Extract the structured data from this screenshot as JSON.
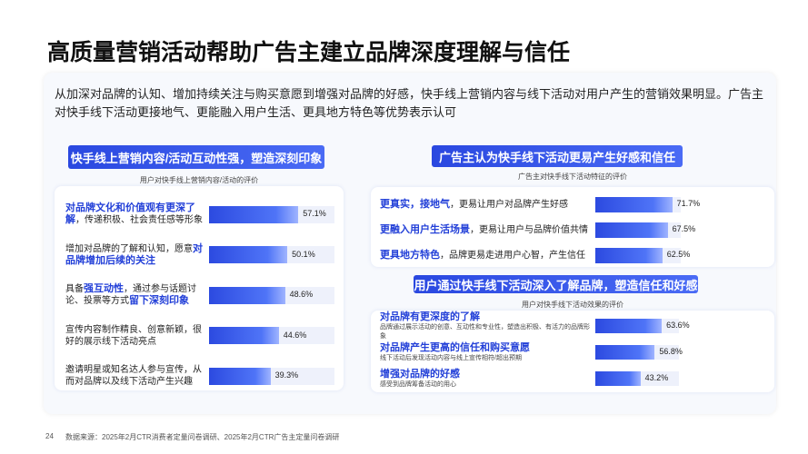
{
  "page": {
    "title": "高质量营销活动帮助广告主建立品牌深度理解与信任",
    "subtitle": "从加深对品牌的认知、增加持续关注与购买意愿到增强对品牌的好感，快手线上营销内容与线下活动对用户产生的营销效果明显。广告主对快手线下活动更接地气、更能融入用户生活、更具地方特色等优势表示认可",
    "page_number": "24",
    "source": "数据来源：2025年2月CTR消费者定量问卷调研、2025年2月CTR广告主定量问卷调研"
  },
  "chart_data": [
    {
      "type": "bar",
      "orientation": "horizontal",
      "title": "快手线上营销内容/活动互动性强，塑造深刻印象",
      "subtitle": "用户对快手线上营销内容/活动的评价",
      "color": "#3d5be8",
      "categories": [
        [
          {
            "text": "对品牌文化和价值观有更深了解",
            "style": "strong"
          },
          {
            "text": "，传递积极、社会责任感等形象",
            "style": "plain"
          }
        ],
        [
          {
            "text": "增加对品牌的了解和认知，愿意",
            "style": "plain"
          },
          {
            "text": "对品牌增加后续的关注",
            "style": "strong"
          }
        ],
        [
          {
            "text": "具备",
            "style": "plain"
          },
          {
            "text": "强互动性",
            "style": "strong"
          },
          {
            "text": "，通过参与话题讨论、投票等方式",
            "style": "plain"
          },
          {
            "text": "留下深刻印象",
            "style": "strong"
          }
        ],
        [
          {
            "text": "宣传内容制作精良、创意新颖，很好的展示线下活动亮点",
            "style": "plain"
          }
        ],
        [
          {
            "text": "邀请明星或知名达人参与宣传，从而对品牌以及线下活动产生兴趣",
            "style": "plain"
          }
        ]
      ],
      "values": [
        57.1,
        50.1,
        48.6,
        44.6,
        39.3
      ],
      "value_labels": [
        "57.1%",
        "50.1%",
        "48.6%",
        "44.6%",
        "39.3%"
      ]
    },
    {
      "type": "bar",
      "orientation": "horizontal",
      "title": "广告主认为快手线下活动更易产生好感和信任",
      "subtitle": "广告主对快手线下活动特征的评价",
      "color": "#3d5be8",
      "categories": [
        [
          {
            "text": "更真实，接地气",
            "style": "strong"
          },
          {
            "text": "，更易让用户对品牌产生好感",
            "style": "plain"
          }
        ],
        [
          {
            "text": "更融入用户生活场景",
            "style": "strong"
          },
          {
            "text": "，更易让用户与品牌价值共情",
            "style": "plain"
          }
        ],
        [
          {
            "text": "更具地方特色",
            "style": "strong"
          },
          {
            "text": "，品牌更易走进用户心智，产生信任",
            "style": "plain"
          }
        ]
      ],
      "values": [
        71.7,
        67.5,
        62.5
      ],
      "value_labels": [
        "71.7%",
        "67.5%",
        "62.5%"
      ]
    },
    {
      "type": "bar",
      "orientation": "horizontal",
      "title": "用户通过快手线下活动深入了解品牌，塑造信任和好感",
      "subtitle": "用户对快手线下活动效果的评价",
      "color": "#3d5be8",
      "categories": [
        [
          {
            "text": "对品牌有更深度的了解",
            "style": "strong"
          },
          {
            "text": "品牌通过展示活动的创意、互动性和专业性，塑造出积极、有活力的品牌形象",
            "style": "note"
          }
        ],
        [
          {
            "text": "对品牌产生更高的信任和购买意愿",
            "style": "strong"
          },
          {
            "text": "线下活动后发现活动内容与线上宣传相符/超出预期",
            "style": "note"
          }
        ],
        [
          {
            "text": "增强对品牌的好感",
            "style": "strong"
          },
          {
            "text": "感受到品牌筹备活动的用心",
            "style": "note"
          }
        ]
      ],
      "values": [
        63.6,
        56.8,
        43.2
      ],
      "value_labels": [
        "63.6%",
        "56.8%",
        "43.2%"
      ]
    }
  ]
}
